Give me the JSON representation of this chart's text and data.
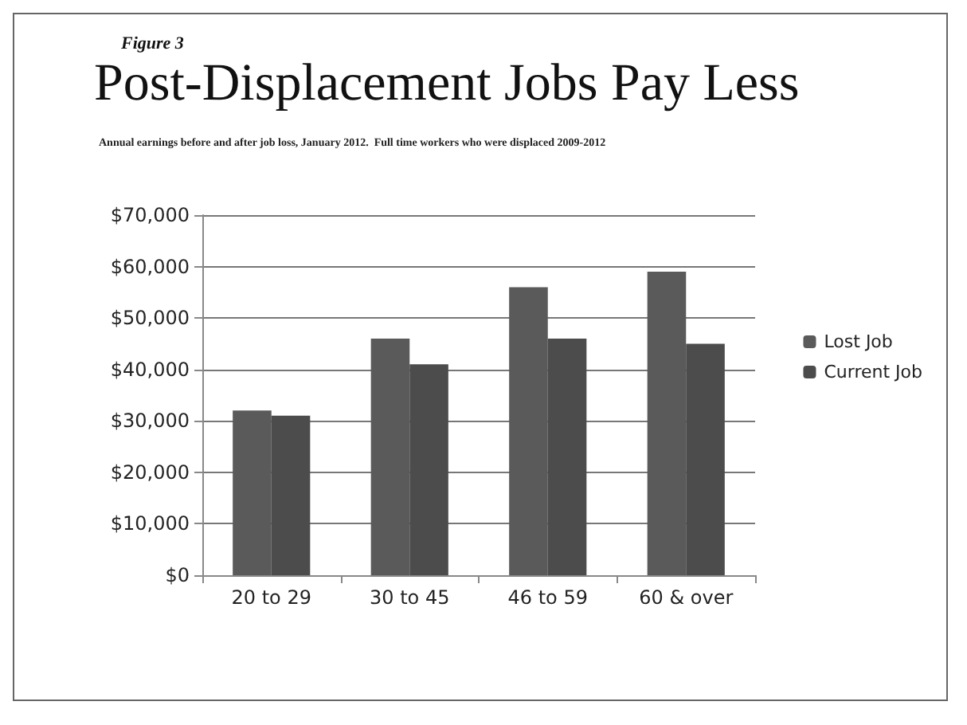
{
  "chart_data": {
    "type": "bar",
    "annotations": [
      "Figure 3"
    ],
    "title": "Post-Displacement Jobs Pay Less",
    "subtitle": "Annual earnings before and after job loss, January 2012.  Full time workers who were displaced 2009-2012",
    "categories": [
      "20 to 29",
      "30 to 45",
      "46 to 59",
      "60 & over"
    ],
    "series": [
      {
        "name": "Lost Job",
        "color": "#5a5a5a",
        "values": [
          32000,
          46000,
          56000,
          59000
        ]
      },
      {
        "name": "Current Job",
        "color": "#4c4c4c",
        "values": [
          31000,
          41000,
          46000,
          45000
        ]
      }
    ],
    "ylim": [
      0,
      70000
    ],
    "yticks": [
      {
        "value": 0,
        "label": "$0"
      },
      {
        "value": 10000,
        "label": "$10,000"
      },
      {
        "value": 20000,
        "label": "$20,000"
      },
      {
        "value": 30000,
        "label": "$30,000"
      },
      {
        "value": 40000,
        "label": "$40,000"
      },
      {
        "value": 50000,
        "label": "$50,000"
      },
      {
        "value": 60000,
        "label": "$60,000"
      },
      {
        "value": 70000,
        "label": "$70,000"
      }
    ],
    "grid": "y",
    "legend": "right"
  }
}
